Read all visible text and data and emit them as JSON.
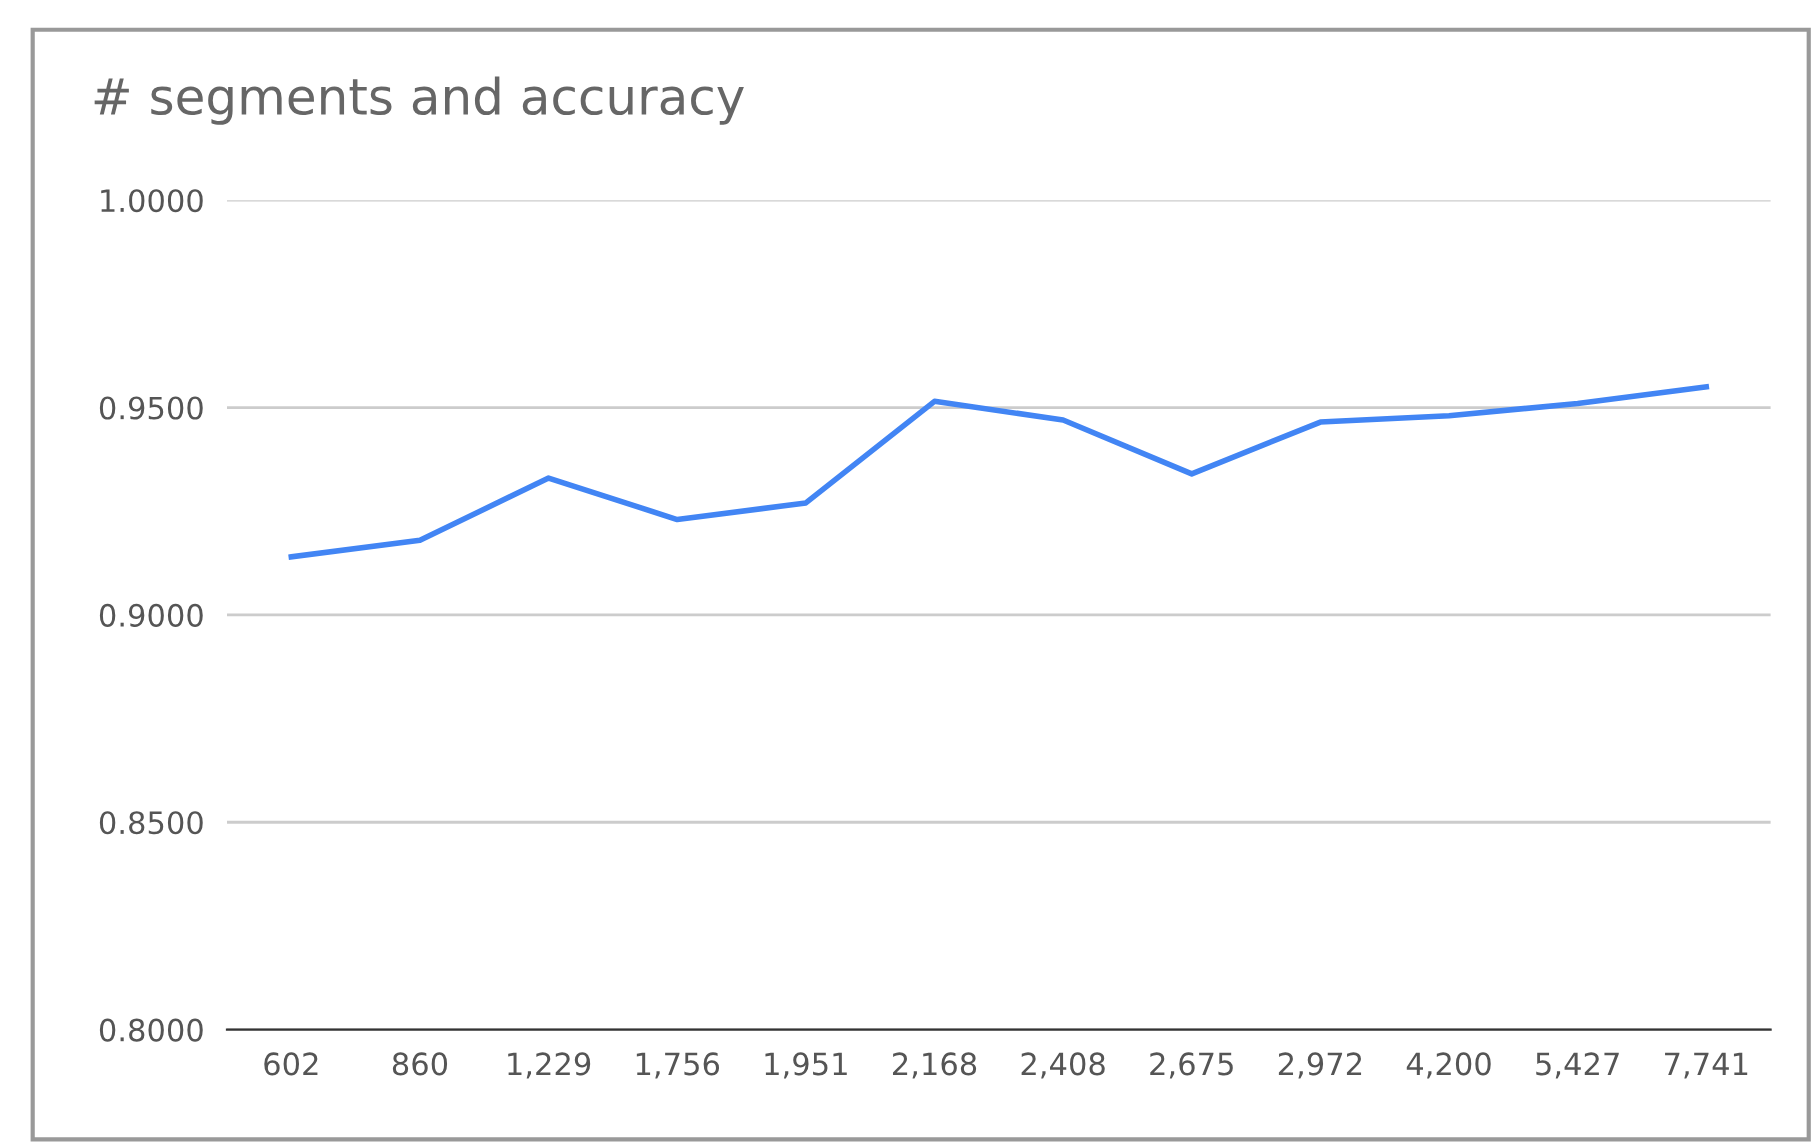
{
  "chart_data": {
    "type": "line",
    "title": "# segments and accuracy",
    "categories": [
      "602",
      "860",
      "1,229",
      "1,756",
      "1,951",
      "2,168",
      "2,408",
      "2,675",
      "2,972",
      "4,200",
      "5,427",
      "7,741"
    ],
    "series": [
      {
        "color": "#4285f4",
        "values": [
          0.914,
          0.918,
          0.933,
          0.923,
          0.927,
          0.9515,
          0.947,
          0.934,
          0.9465,
          0.948,
          0.951,
          0.955
        ]
      }
    ],
    "ylim": [
      0.8,
      1.0
    ],
    "yticks": [
      {
        "value": 0.8,
        "label": "0.8000"
      },
      {
        "value": 0.85,
        "label": "0.8500"
      },
      {
        "value": 0.9,
        "label": "0.9000"
      },
      {
        "value": 0.95,
        "label": "0.9500"
      },
      {
        "value": 1.0,
        "label": "1.0000"
      }
    ],
    "grid": "y",
    "legend": false,
    "marker": "none",
    "line_style": "solid"
  }
}
